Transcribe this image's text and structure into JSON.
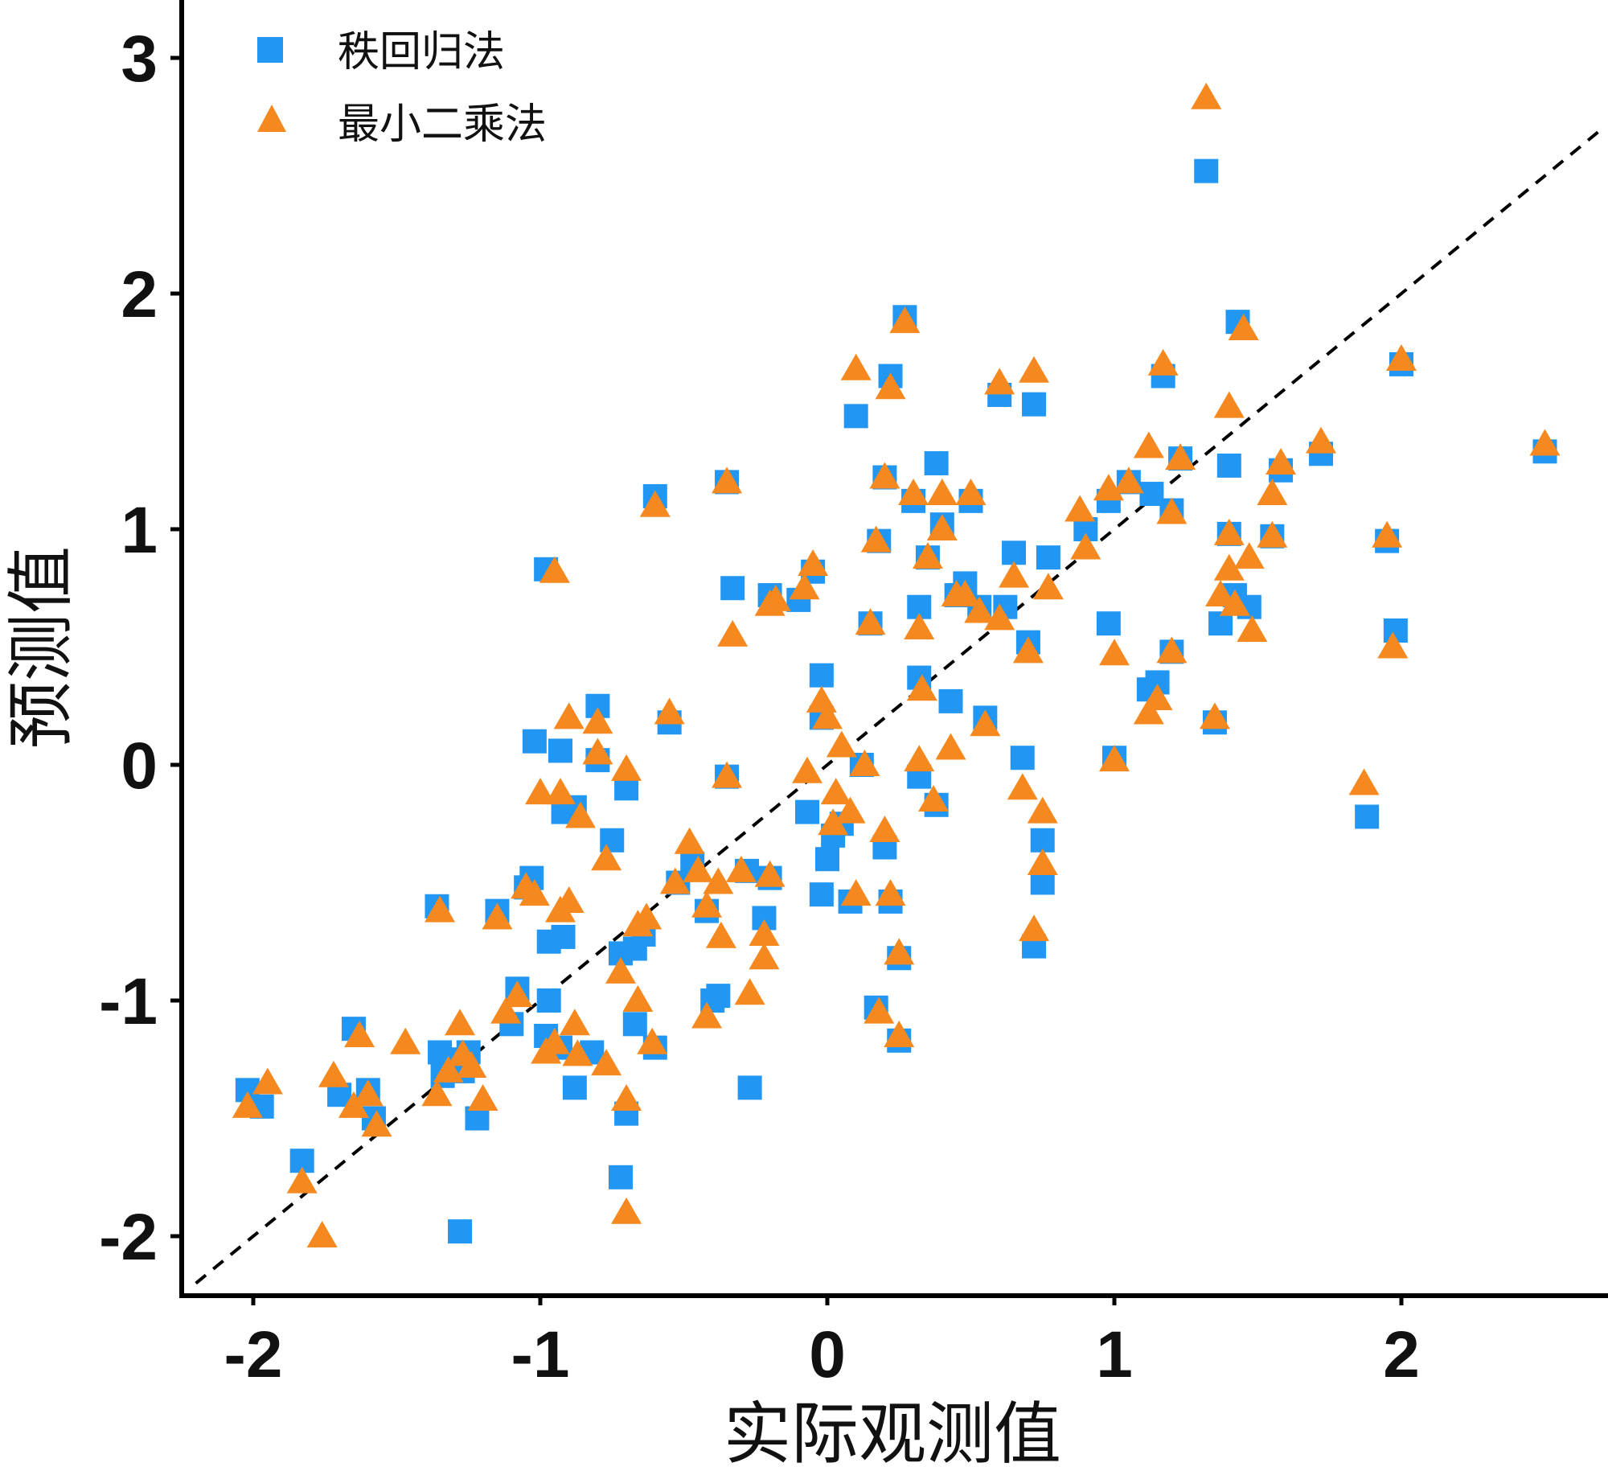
{
  "chart_data": {
    "type": "scatter",
    "xlabel": "实际观测值",
    "ylabel": "预测值",
    "xlim": [
      -2.25,
      2.7
    ],
    "ylim": [
      -2.25,
      3.25
    ],
    "xticks": [
      -2,
      -1,
      0,
      1,
      2
    ],
    "yticks": [
      -2,
      -1,
      0,
      1,
      2,
      3
    ],
    "xtick_labels": [
      "-2",
      "-1",
      "0",
      "1",
      "2"
    ],
    "ytick_labels": [
      "-2",
      "-1",
      "0",
      "1",
      "2",
      "3"
    ],
    "grid": false,
    "legend": "top-left",
    "reference_line": {
      "style": "dashed",
      "color": "#000000",
      "points": [
        [
          -2.2,
          -2.2
        ],
        [
          2.7,
          2.7
        ]
      ]
    },
    "series": [
      {
        "name": "秩回归法",
        "marker": "square",
        "color": "#2196F3",
        "points": [
          [
            -2.02,
            -1.38
          ],
          [
            -1.97,
            -1.45
          ],
          [
            -1.83,
            -1.68
          ],
          [
            -1.7,
            -1.4
          ],
          [
            -1.65,
            -1.12
          ],
          [
            -1.6,
            -1.38
          ],
          [
            -1.58,
            -1.5
          ],
          [
            -1.35,
            -1.22
          ],
          [
            -1.34,
            -1.32
          ],
          [
            -1.3,
            -1.25
          ],
          [
            -1.27,
            -1.3
          ],
          [
            -1.25,
            -1.22
          ],
          [
            -1.22,
            -1.5
          ],
          [
            -1.28,
            -1.98
          ],
          [
            -1.36,
            -0.6
          ],
          [
            -1.15,
            -0.62
          ],
          [
            -1.1,
            -1.1
          ],
          [
            -1.08,
            -0.95
          ],
          [
            -1.05,
            -0.52
          ],
          [
            -1.03,
            -0.48
          ],
          [
            -0.98,
            -1.15
          ],
          [
            -0.97,
            -0.75
          ],
          [
            -0.92,
            -0.73
          ],
          [
            -0.97,
            -1.0
          ],
          [
            -0.93,
            -1.2
          ],
          [
            -0.88,
            -1.37
          ],
          [
            -0.82,
            -1.22
          ],
          [
            -1.02,
            0.1
          ],
          [
            -0.98,
            0.83
          ],
          [
            -0.93,
            0.06
          ],
          [
            -0.92,
            -0.2
          ],
          [
            -0.88,
            -0.18
          ],
          [
            -0.8,
            0.25
          ],
          [
            -0.8,
            0.02
          ],
          [
            -0.75,
            -0.32
          ],
          [
            -0.7,
            -0.1
          ],
          [
            -0.72,
            -0.8
          ],
          [
            -0.67,
            -0.78
          ],
          [
            -0.67,
            -1.1
          ],
          [
            -0.64,
            -0.72
          ],
          [
            -0.7,
            -1.48
          ],
          [
            -0.72,
            -1.75
          ],
          [
            -0.6,
            1.14
          ],
          [
            -0.6,
            -1.2
          ],
          [
            -0.55,
            0.18
          ],
          [
            -0.52,
            -0.5
          ],
          [
            -0.47,
            -0.42
          ],
          [
            -0.42,
            -0.62
          ],
          [
            -0.4,
            -1.0
          ],
          [
            -0.38,
            -0.98
          ],
          [
            -0.35,
            1.2
          ],
          [
            -0.35,
            -0.05
          ],
          [
            -0.33,
            0.75
          ],
          [
            -0.28,
            -0.45
          ],
          [
            -0.27,
            -1.37
          ],
          [
            -0.2,
            0.72
          ],
          [
            -0.2,
            -0.48
          ],
          [
            -0.22,
            -0.65
          ],
          [
            -0.1,
            0.7
          ],
          [
            -0.05,
            0.82
          ],
          [
            -0.07,
            -0.2
          ],
          [
            -0.02,
            0.38
          ],
          [
            -0.02,
            0.2
          ],
          [
            0.0,
            -0.4
          ],
          [
            0.02,
            -0.3
          ],
          [
            -0.02,
            -0.55
          ],
          [
            0.05,
            -0.25
          ],
          [
            0.08,
            -0.58
          ],
          [
            0.1,
            1.48
          ],
          [
            0.12,
            0.0
          ],
          [
            0.15,
            0.6
          ],
          [
            0.18,
            0.95
          ],
          [
            0.2,
            1.22
          ],
          [
            0.2,
            -0.35
          ],
          [
            0.22,
            -0.58
          ],
          [
            0.22,
            1.65
          ],
          [
            0.27,
            1.9
          ],
          [
            0.17,
            -1.03
          ],
          [
            0.25,
            -1.17
          ],
          [
            0.25,
            -0.82
          ],
          [
            0.3,
            1.12
          ],
          [
            0.32,
            -0.05
          ],
          [
            0.32,
            0.67
          ],
          [
            0.32,
            0.37
          ],
          [
            0.35,
            0.88
          ],
          [
            0.38,
            -0.17
          ],
          [
            0.38,
            1.28
          ],
          [
            0.4,
            1.02
          ],
          [
            0.43,
            0.27
          ],
          [
            0.45,
            0.72
          ],
          [
            0.48,
            0.77
          ],
          [
            0.5,
            1.12
          ],
          [
            0.53,
            0.67
          ],
          [
            0.55,
            0.2
          ],
          [
            0.6,
            1.57
          ],
          [
            0.62,
            0.67
          ],
          [
            0.65,
            0.9
          ],
          [
            0.68,
            0.03
          ],
          [
            0.7,
            0.52
          ],
          [
            0.72,
            1.53
          ],
          [
            0.72,
            -0.77
          ],
          [
            0.75,
            -0.32
          ],
          [
            0.75,
            -0.5
          ],
          [
            0.77,
            0.88
          ],
          [
            0.9,
            1.0
          ],
          [
            0.98,
            1.12
          ],
          [
            0.98,
            0.6
          ],
          [
            1.0,
            0.03
          ],
          [
            1.05,
            1.2
          ],
          [
            1.12,
            0.32
          ],
          [
            1.13,
            1.15
          ],
          [
            1.15,
            0.35
          ],
          [
            1.17,
            1.65
          ],
          [
            1.2,
            1.08
          ],
          [
            1.2,
            0.48
          ],
          [
            1.23,
            1.3
          ],
          [
            1.35,
            0.18
          ],
          [
            1.37,
            0.6
          ],
          [
            1.4,
            0.98
          ],
          [
            1.4,
            1.27
          ],
          [
            1.42,
            0.72
          ],
          [
            1.43,
            1.88
          ],
          [
            1.47,
            0.67
          ],
          [
            1.55,
            0.97
          ],
          [
            1.58,
            1.25
          ],
          [
            1.72,
            1.32
          ],
          [
            1.88,
            -0.22
          ],
          [
            1.95,
            0.95
          ],
          [
            1.98,
            0.57
          ],
          [
            2.0,
            1.7
          ],
          [
            2.5,
            1.33
          ],
          [
            1.32,
            2.52
          ]
        ]
      },
      {
        "name": "最小二乘法",
        "marker": "triangle",
        "color": "#F5891F",
        "points": [
          [
            -2.02,
            -1.45
          ],
          [
            -1.95,
            -1.35
          ],
          [
            -1.83,
            -1.77
          ],
          [
            -1.76,
            -2.0
          ],
          [
            -1.72,
            -1.32
          ],
          [
            -1.65,
            -1.45
          ],
          [
            -1.63,
            -1.15
          ],
          [
            -1.6,
            -1.4
          ],
          [
            -1.57,
            -1.53
          ],
          [
            -1.47,
            -1.18
          ],
          [
            -1.35,
            -0.62
          ],
          [
            -1.36,
            -1.4
          ],
          [
            -1.32,
            -1.3
          ],
          [
            -1.28,
            -1.1
          ],
          [
            -1.27,
            -1.23
          ],
          [
            -1.24,
            -1.28
          ],
          [
            -1.2,
            -1.42
          ],
          [
            -1.15,
            -0.65
          ],
          [
            -1.12,
            -1.05
          ],
          [
            -1.08,
            -0.98
          ],
          [
            -1.05,
            -0.52
          ],
          [
            -1.02,
            -0.55
          ],
          [
            -1.0,
            -0.12
          ],
          [
            -0.98,
            -1.22
          ],
          [
            -0.95,
            -1.18
          ],
          [
            -0.95,
            0.82
          ],
          [
            -0.93,
            -0.12
          ],
          [
            -0.93,
            -0.62
          ],
          [
            -0.9,
            -0.58
          ],
          [
            -0.9,
            0.2
          ],
          [
            -0.88,
            -1.1
          ],
          [
            -0.87,
            -1.23
          ],
          [
            -0.86,
            -0.22
          ],
          [
            -0.8,
            0.05
          ],
          [
            -0.8,
            0.18
          ],
          [
            -0.77,
            -0.4
          ],
          [
            -0.77,
            -1.27
          ],
          [
            -0.7,
            -0.02
          ],
          [
            -0.72,
            -0.88
          ],
          [
            -0.7,
            -1.9
          ],
          [
            -0.7,
            -1.42
          ],
          [
            -0.66,
            -0.68
          ],
          [
            -0.66,
            -1.0
          ],
          [
            -0.63,
            -0.65
          ],
          [
            -0.61,
            -1.18
          ],
          [
            -0.6,
            1.1
          ],
          [
            -0.55,
            0.22
          ],
          [
            -0.53,
            -0.5
          ],
          [
            -0.48,
            -0.33
          ],
          [
            -0.45,
            -0.45
          ],
          [
            -0.42,
            -0.6
          ],
          [
            -0.42,
            -1.07
          ],
          [
            -0.38,
            -0.5
          ],
          [
            -0.37,
            -0.73
          ],
          [
            -0.35,
            1.2
          ],
          [
            -0.35,
            -0.05
          ],
          [
            -0.33,
            0.55
          ],
          [
            -0.3,
            -0.45
          ],
          [
            -0.27,
            -0.97
          ],
          [
            -0.22,
            -0.72
          ],
          [
            -0.22,
            -0.82
          ],
          [
            -0.2,
            0.68
          ],
          [
            -0.2,
            -0.47
          ],
          [
            -0.18,
            0.7
          ],
          [
            -0.08,
            0.75
          ],
          [
            -0.05,
            0.85
          ],
          [
            -0.07,
            -0.03
          ],
          [
            -0.02,
            0.27
          ],
          [
            0.0,
            0.2
          ],
          [
            0.02,
            -0.25
          ],
          [
            0.03,
            -0.12
          ],
          [
            0.05,
            0.08
          ],
          [
            0.08,
            -0.2
          ],
          [
            0.1,
            -0.55
          ],
          [
            0.1,
            1.68
          ],
          [
            0.13,
            0.0
          ],
          [
            0.15,
            0.6
          ],
          [
            0.17,
            0.95
          ],
          [
            0.2,
            1.22
          ],
          [
            0.2,
            -0.28
          ],
          [
            0.22,
            -0.55
          ],
          [
            0.22,
            1.6
          ],
          [
            0.27,
            1.88
          ],
          [
            0.18,
            -1.05
          ],
          [
            0.25,
            -1.15
          ],
          [
            0.25,
            -0.8
          ],
          [
            0.3,
            1.15
          ],
          [
            0.32,
            0.02
          ],
          [
            0.32,
            0.58
          ],
          [
            0.33,
            0.32
          ],
          [
            0.35,
            0.88
          ],
          [
            0.37,
            -0.15
          ],
          [
            0.4,
            1.15
          ],
          [
            0.4,
            1.0
          ],
          [
            0.43,
            0.07
          ],
          [
            0.45,
            0.72
          ],
          [
            0.48,
            0.72
          ],
          [
            0.5,
            1.15
          ],
          [
            0.53,
            0.65
          ],
          [
            0.55,
            0.17
          ],
          [
            0.6,
            0.62
          ],
          [
            0.6,
            1.62
          ],
          [
            0.65,
            0.8
          ],
          [
            0.68,
            -0.1
          ],
          [
            0.7,
            0.48
          ],
          [
            0.72,
            1.67
          ],
          [
            0.72,
            -0.7
          ],
          [
            0.75,
            -0.2
          ],
          [
            0.75,
            -0.42
          ],
          [
            0.77,
            0.75
          ],
          [
            0.88,
            1.08
          ],
          [
            0.9,
            0.92
          ],
          [
            0.98,
            1.17
          ],
          [
            1.0,
            0.47
          ],
          [
            1.0,
            0.02
          ],
          [
            1.05,
            1.2
          ],
          [
            1.12,
            0.22
          ],
          [
            1.12,
            1.35
          ],
          [
            1.15,
            0.28
          ],
          [
            1.17,
            1.7
          ],
          [
            1.2,
            1.07
          ],
          [
            1.2,
            0.48
          ],
          [
            1.23,
            1.3
          ],
          [
            1.35,
            0.2
          ],
          [
            1.37,
            0.72
          ],
          [
            1.4,
            1.52
          ],
          [
            1.4,
            0.98
          ],
          [
            1.4,
            0.83
          ],
          [
            1.42,
            0.68
          ],
          [
            1.45,
            1.85
          ],
          [
            1.47,
            0.88
          ],
          [
            1.48,
            0.57
          ],
          [
            1.55,
            0.97
          ],
          [
            1.55,
            1.15
          ],
          [
            1.58,
            1.28
          ],
          [
            1.72,
            1.37
          ],
          [
            1.87,
            -0.08
          ],
          [
            1.95,
            0.97
          ],
          [
            1.97,
            0.5
          ],
          [
            2.0,
            1.72
          ],
          [
            2.5,
            1.36
          ],
          [
            1.32,
            2.83
          ]
        ]
      }
    ]
  }
}
